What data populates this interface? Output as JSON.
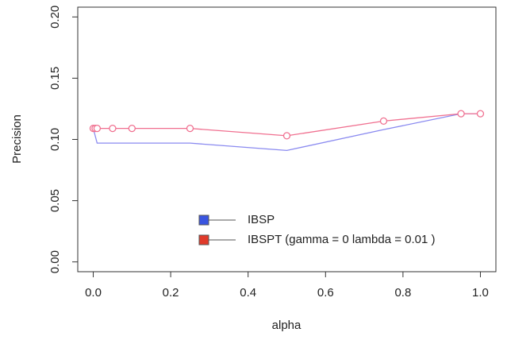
{
  "chart_data": {
    "type": "line",
    "x_label": "alpha",
    "y_label": "Precision",
    "xlim": [
      -0.04,
      1.04
    ],
    "ylim": [
      -0.008,
      0.208
    ],
    "xticks": [
      {
        "value": 0,
        "label": "0.0"
      },
      0.2,
      0.4,
      0.6,
      0.8,
      {
        "value": 1,
        "label": "1.0"
      }
    ],
    "yticks": [
      {
        "value": 0,
        "label": "0.00"
      },
      0.05,
      {
        "value": 0.1,
        "label": "0.10"
      },
      0.15,
      {
        "value": 0.2,
        "label": "0.20"
      }
    ],
    "legend_position": "bottom",
    "series": [
      {
        "name": "IBSP",
        "color": "#8a8af0",
        "legend_color": "#3a55e0",
        "markers": false,
        "x": [
          0,
          0.01,
          0.25,
          0.5,
          0.75,
          0.95,
          1
        ],
        "values": [
          0.109,
          0.097,
          0.097,
          0.091,
          0.108,
          0.121,
          0.121
        ]
      },
      {
        "name": "IBSPT (gamma = 0 lambda = 0.01 )",
        "color": "#f07090",
        "legend_color": "#e03a2a",
        "markers": true,
        "x": [
          0,
          0.005,
          0.01,
          0.05,
          0.1,
          0.25,
          0.5,
          0.75,
          0.95,
          1
        ],
        "values": [
          0.109,
          0.109,
          0.109,
          0.109,
          0.109,
          0.109,
          0.103,
          0.115,
          0.121,
          0.121
        ]
      }
    ]
  }
}
